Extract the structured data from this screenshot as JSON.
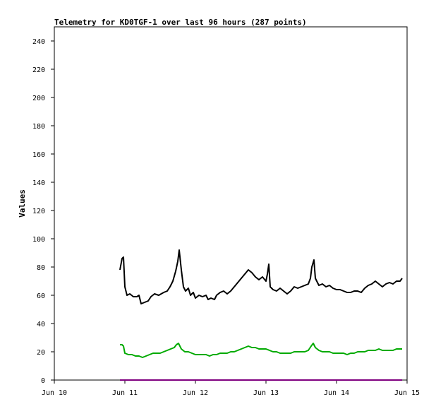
{
  "chart_data": {
    "type": "line",
    "title": "Telemetry for KD0TGF-1 over last 96 hours (287 points)",
    "xlabel": "",
    "ylabel": "Values",
    "x_range_days": [
      10,
      15
    ],
    "x_tick_values": [
      10,
      11,
      12,
      13,
      14,
      15
    ],
    "x_tick_labels": [
      "Jun 10",
      "Jun 11",
      "Jun 12",
      "Jun 13",
      "Jun 14",
      "Jun 15"
    ],
    "ylim": [
      0,
      250
    ],
    "y_ticks": [
      0,
      20,
      40,
      60,
      80,
      100,
      120,
      140,
      160,
      180,
      200,
      220,
      240
    ],
    "grid": false,
    "legend": "none",
    "series": [
      {
        "color": "#000000",
        "points": [
          [
            10.93,
            78
          ],
          [
            10.96,
            86
          ],
          [
            10.98,
            87
          ],
          [
            11.0,
            66
          ],
          [
            11.03,
            60
          ],
          [
            11.07,
            61
          ],
          [
            11.12,
            59
          ],
          [
            11.17,
            59
          ],
          [
            11.2,
            60
          ],
          [
            11.23,
            54
          ],
          [
            11.28,
            55
          ],
          [
            11.33,
            56
          ],
          [
            11.37,
            59
          ],
          [
            11.42,
            61
          ],
          [
            11.48,
            60
          ],
          [
            11.55,
            62
          ],
          [
            11.6,
            63
          ],
          [
            11.64,
            66
          ],
          [
            11.68,
            70
          ],
          [
            11.72,
            77
          ],
          [
            11.75,
            84
          ],
          [
            11.77,
            92
          ],
          [
            11.8,
            78
          ],
          [
            11.83,
            66
          ],
          [
            11.86,
            63
          ],
          [
            11.9,
            65
          ],
          [
            11.93,
            60
          ],
          [
            11.97,
            62
          ],
          [
            12.0,
            58
          ],
          [
            12.05,
            60
          ],
          [
            12.1,
            59
          ],
          [
            12.15,
            60
          ],
          [
            12.18,
            57
          ],
          [
            12.22,
            58
          ],
          [
            12.27,
            57
          ],
          [
            12.3,
            60
          ],
          [
            12.35,
            62
          ],
          [
            12.4,
            63
          ],
          [
            12.45,
            61
          ],
          [
            12.5,
            63
          ],
          [
            12.55,
            66
          ],
          [
            12.6,
            69
          ],
          [
            12.65,
            72
          ],
          [
            12.7,
            75
          ],
          [
            12.75,
            78
          ],
          [
            12.8,
            76
          ],
          [
            12.85,
            73
          ],
          [
            12.9,
            71
          ],
          [
            12.95,
            73
          ],
          [
            13.0,
            70
          ],
          [
            13.02,
            75
          ],
          [
            13.04,
            82
          ],
          [
            13.06,
            66
          ],
          [
            13.1,
            64
          ],
          [
            13.15,
            63
          ],
          [
            13.2,
            65
          ],
          [
            13.25,
            63
          ],
          [
            13.3,
            61
          ],
          [
            13.35,
            63
          ],
          [
            13.4,
            66
          ],
          [
            13.45,
            65
          ],
          [
            13.5,
            66
          ],
          [
            13.55,
            67
          ],
          [
            13.6,
            68
          ],
          [
            13.63,
            72
          ],
          [
            13.65,
            80
          ],
          [
            13.68,
            85
          ],
          [
            13.7,
            72
          ],
          [
            13.75,
            67
          ],
          [
            13.8,
            68
          ],
          [
            13.85,
            66
          ],
          [
            13.9,
            67
          ],
          [
            13.95,
            65
          ],
          [
            14.0,
            64
          ],
          [
            14.05,
            64
          ],
          [
            14.1,
            63
          ],
          [
            14.15,
            62
          ],
          [
            14.2,
            62
          ],
          [
            14.25,
            63
          ],
          [
            14.3,
            63
          ],
          [
            14.35,
            62
          ],
          [
            14.4,
            65
          ],
          [
            14.45,
            67
          ],
          [
            14.5,
            68
          ],
          [
            14.55,
            70
          ],
          [
            14.6,
            68
          ],
          [
            14.65,
            66
          ],
          [
            14.7,
            68
          ],
          [
            14.75,
            69
          ],
          [
            14.8,
            68
          ],
          [
            14.85,
            70
          ],
          [
            14.9,
            70
          ],
          [
            14.93,
            72
          ]
        ]
      },
      {
        "color": "#00aa00",
        "points": [
          [
            10.93,
            25
          ],
          [
            10.96,
            25
          ],
          [
            10.98,
            24
          ],
          [
            11.0,
            19
          ],
          [
            11.05,
            18
          ],
          [
            11.1,
            18
          ],
          [
            11.15,
            17
          ],
          [
            11.2,
            17
          ],
          [
            11.25,
            16
          ],
          [
            11.3,
            17
          ],
          [
            11.35,
            18
          ],
          [
            11.4,
            19
          ],
          [
            11.45,
            19
          ],
          [
            11.5,
            19
          ],
          [
            11.55,
            20
          ],
          [
            11.6,
            21
          ],
          [
            11.65,
            22
          ],
          [
            11.7,
            23
          ],
          [
            11.73,
            25
          ],
          [
            11.76,
            26
          ],
          [
            11.8,
            22
          ],
          [
            11.85,
            20
          ],
          [
            11.9,
            20
          ],
          [
            11.95,
            19
          ],
          [
            12.0,
            18
          ],
          [
            12.05,
            18
          ],
          [
            12.1,
            18
          ],
          [
            12.15,
            18
          ],
          [
            12.2,
            17
          ],
          [
            12.25,
            18
          ],
          [
            12.3,
            18
          ],
          [
            12.35,
            19
          ],
          [
            12.4,
            19
          ],
          [
            12.45,
            19
          ],
          [
            12.5,
            20
          ],
          [
            12.55,
            20
          ],
          [
            12.6,
            21
          ],
          [
            12.65,
            22
          ],
          [
            12.7,
            23
          ],
          [
            12.75,
            24
          ],
          [
            12.8,
            23
          ],
          [
            12.85,
            23
          ],
          [
            12.9,
            22
          ],
          [
            12.95,
            22
          ],
          [
            13.0,
            22
          ],
          [
            13.05,
            21
          ],
          [
            13.1,
            20
          ],
          [
            13.15,
            20
          ],
          [
            13.2,
            19
          ],
          [
            13.25,
            19
          ],
          [
            13.3,
            19
          ],
          [
            13.35,
            19
          ],
          [
            13.4,
            20
          ],
          [
            13.45,
            20
          ],
          [
            13.5,
            20
          ],
          [
            13.55,
            20
          ],
          [
            13.6,
            21
          ],
          [
            13.64,
            24
          ],
          [
            13.67,
            26
          ],
          [
            13.7,
            23
          ],
          [
            13.75,
            21
          ],
          [
            13.8,
            20
          ],
          [
            13.85,
            20
          ],
          [
            13.9,
            20
          ],
          [
            13.95,
            19
          ],
          [
            14.0,
            19
          ],
          [
            14.05,
            19
          ],
          [
            14.1,
            19
          ],
          [
            14.15,
            18
          ],
          [
            14.2,
            19
          ],
          [
            14.25,
            19
          ],
          [
            14.3,
            20
          ],
          [
            14.35,
            20
          ],
          [
            14.4,
            20
          ],
          [
            14.45,
            21
          ],
          [
            14.5,
            21
          ],
          [
            14.55,
            21
          ],
          [
            14.6,
            22
          ],
          [
            14.65,
            21
          ],
          [
            14.7,
            21
          ],
          [
            14.75,
            21
          ],
          [
            14.8,
            21
          ],
          [
            14.85,
            22
          ],
          [
            14.9,
            22
          ],
          [
            14.93,
            22
          ]
        ]
      },
      {
        "color": "#0000cc",
        "points": [
          [
            10.93,
            0
          ],
          [
            14.93,
            0
          ]
        ]
      },
      {
        "color": "#cc0000",
        "points": [
          [
            10.93,
            0
          ],
          [
            14.93,
            0
          ]
        ]
      },
      {
        "color": "#800080",
        "points": [
          [
            10.93,
            0
          ],
          [
            14.93,
            0
          ]
        ]
      }
    ]
  }
}
